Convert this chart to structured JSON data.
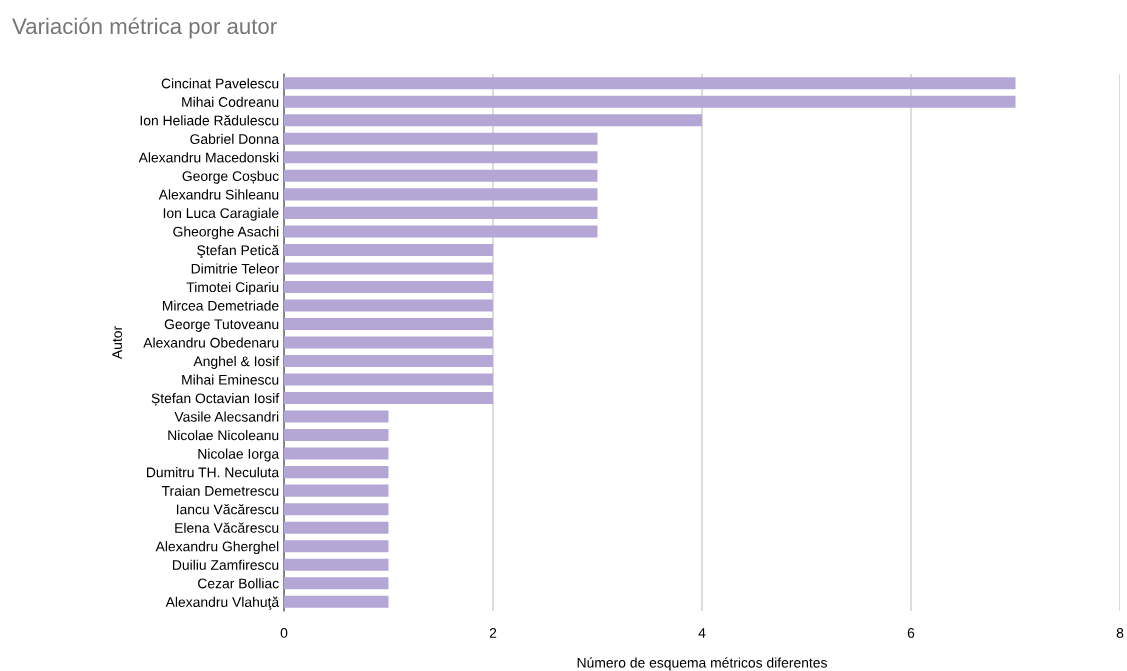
{
  "chart_data": {
    "type": "bar",
    "orientation": "horizontal",
    "title": "Variación métrica por autor",
    "xlabel": "Número de esquema métricos diferentes",
    "ylabel": "Autor",
    "categories": [
      "Cincinat Pavelescu",
      "Mihai Codreanu",
      "Ion Heliade Rădulescu",
      "Gabriel Donna",
      "Alexandru Macedonski",
      "George Coșbuc",
      "Alexandru Sihleanu",
      "Ion Luca Caragiale",
      "Gheorghe Asachi",
      "Ştefan Petică",
      "Dimitrie Teleor",
      "Timotei Cipariu",
      "Mircea Demetriade",
      "George Tutoveanu",
      "Alexandru Obedenaru",
      "Anghel & Iosif",
      "Mihai Eminescu",
      "Ștefan Octavian Iosif",
      "Vasile Alecsandri",
      "Nicolae Nicoleanu",
      "Nicolae Iorga",
      "Dumitru TH. Neculuta",
      "Traian Demetrescu",
      "Iancu Văcărescu",
      "Elena Văcărescu",
      "Alexandru Gherghel",
      "Duiliu Zamfirescu",
      "Cezar Bolliac",
      "Alexandru Vlahuţă"
    ],
    "values": [
      7,
      7,
      4,
      3,
      3,
      3,
      3,
      3,
      3,
      2,
      2,
      2,
      2,
      2,
      2,
      2,
      2,
      2,
      1,
      1,
      1,
      1,
      1,
      1,
      1,
      1,
      1,
      1,
      1
    ],
    "color": "#b4a7d6",
    "xlim": [
      0,
      8
    ],
    "xticks": [
      0,
      2,
      4,
      6,
      8
    ],
    "grid": "x",
    "legend": false
  }
}
